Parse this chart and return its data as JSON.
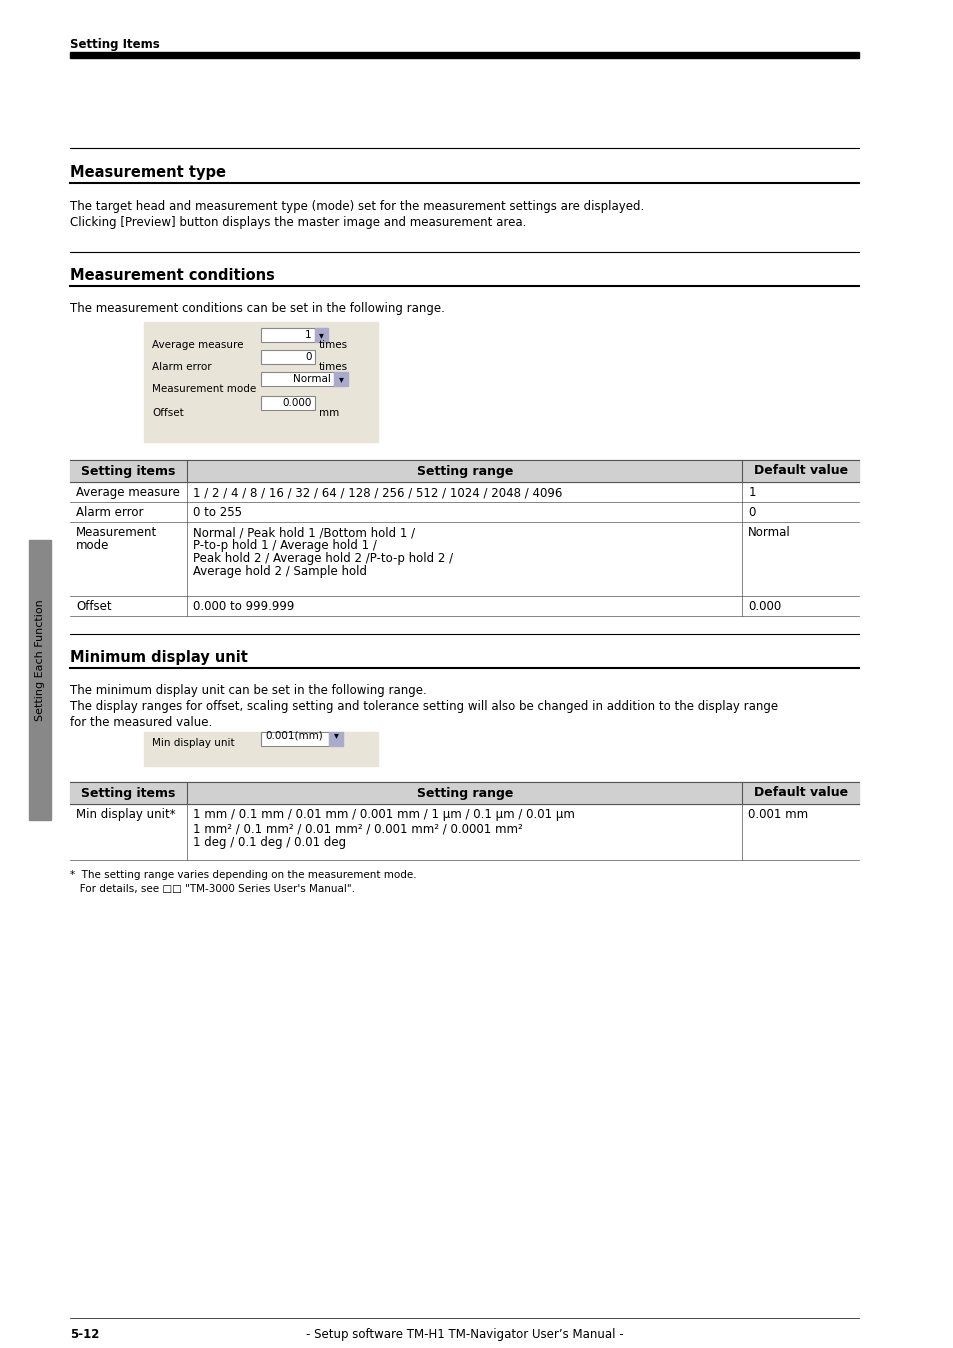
{
  "page_header": "Setting Items",
  "top_bar_color": "#000000",
  "section1_title": "Measurement type",
  "section1_body": [
    "The target head and measurement type (mode) set for the measurement settings are displayed.",
    "Clicking [Preview] button displays the master image and measurement area."
  ],
  "section2_title": "Measurement conditions",
  "section2_body": [
    "The measurement conditions can be set in the following range."
  ],
  "ui_box1_fields": [
    [
      "Average measure",
      "1",
      "times"
    ],
    [
      "Alarm error",
      "0",
      "times"
    ],
    [
      "Measurement mode",
      "Normal",
      ""
    ],
    [
      "Offset",
      "0.000",
      "mm"
    ]
  ],
  "table1_headers": [
    "Setting items",
    "Setting range",
    "Default value"
  ],
  "table1_rows": [
    [
      "Average measure",
      "1 / 2 / 4 / 8 / 16 / 32 / 64 / 128 / 256 / 512 / 1024 / 2048 / 4096",
      "1"
    ],
    [
      "Alarm error",
      "0 to 255",
      "0"
    ],
    [
      "Measurement\nmode",
      "Normal / Peak hold 1 /Bottom hold 1 /\nP-to-p hold 1 / Average hold 1 /\nPeak hold 2 / Average hold 2 /P-to-p hold 2 /\nAverage hold 2 / Sample hold",
      "Normal"
    ],
    [
      "Offset",
      "0.000 to 999.999",
      "0.000"
    ]
  ],
  "section3_title": "Minimum display unit",
  "section3_body": [
    "The minimum display unit can be set in the following range.",
    "The display ranges for offset, scaling setting and tolerance setting will also be changed in addition to the display range\nfor the measured value."
  ],
  "ui_box2_fields": [
    [
      "Min display unit",
      "0.001(mm)",
      ""
    ]
  ],
  "table2_headers": [
    "Setting items",
    "Setting range",
    "Default value"
  ],
  "table2_rows": [
    [
      "Min display unit*",
      "1 mm / 0.1 mm / 0.01 mm / 0.001 mm / 1 μm / 0.1 μm / 0.01 μm\n1 mm² / 0.1 mm² / 0.01 mm² / 0.001 mm² / 0.0001 mm²\n1 deg / 0.1 deg / 0.01 deg",
      "0.001 mm"
    ]
  ],
  "footnote": "*  The setting range varies depending on the measurement mode.\n   For details, see □□ \"TM-3000 Series User's Manual\".",
  "page_footer": "5-12                                    - Setup software TM-H1 TM-Navigator User’s Manual -",
  "sidebar_text": "Setting Each Function",
  "sidebar_color": "#888888",
  "table_header_bg": "#d0d0d0",
  "table_border_color": "#555555",
  "ui_box_bg": "#e8e4d8",
  "section_line_color": "#000000",
  "body_font_size": 8.5,
  "header_font_size": 10.5,
  "table_header_font_size": 9,
  "table_body_font_size": 8.5
}
